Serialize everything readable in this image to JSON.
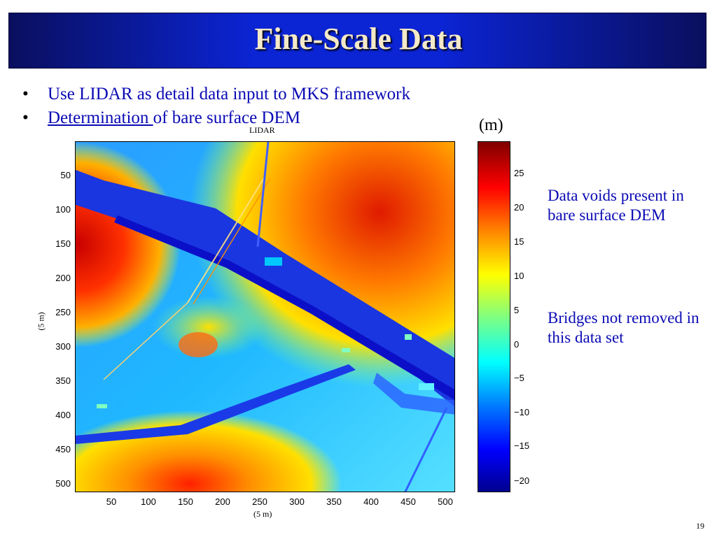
{
  "slide": {
    "title": "Fine-Scale Data",
    "page_number": "19"
  },
  "bullets": [
    {
      "text": "Use LIDAR as detail data input to MKS framework"
    },
    {
      "link_text": "Determination ",
      "text": "of bare surface DEM"
    }
  ],
  "plot": {
    "title": "LIDAR",
    "xlabel": "(5 m)",
    "ylabel": "(5 m)",
    "x_ticks": [
      "50",
      "100",
      "150",
      "200",
      "250",
      "300",
      "350",
      "400",
      "450",
      "500"
    ],
    "y_ticks": [
      "50",
      "100",
      "150",
      "200",
      "250",
      "300",
      "350",
      "400",
      "450",
      "500"
    ]
  },
  "colorbar": {
    "unit": "(m)",
    "ticks": [
      "25",
      "20",
      "15",
      "10",
      "5",
      "0",
      "−5",
      "−10",
      "−15",
      "−20"
    ]
  },
  "notes": [
    "Data voids present in bare surface DEM",
    "Bridges not removed in this data set"
  ],
  "colors": {
    "title_text": "#f4e9c8",
    "bullet_text": "#0a0ab4",
    "title_bar": "#0b24d4"
  }
}
